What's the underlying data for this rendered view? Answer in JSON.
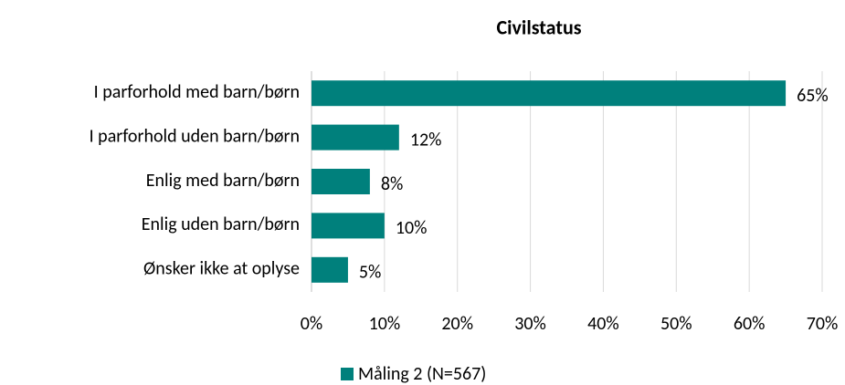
{
  "chart_data": {
    "type": "barh",
    "title": "Civilstatus",
    "categories": [
      "I parforhold med barn/børn",
      "I parforhold uden barn/børn",
      "Enlig med barn/børn",
      "Enlig uden barn/børn",
      "Ønsker ikke at oplyse"
    ],
    "series": [
      {
        "name": "Måling 2 (N=567)",
        "color": "#00807c",
        "values": [
          65,
          12,
          8,
          10,
          5
        ],
        "value_labels": [
          "65%",
          "12%",
          "8%",
          "10%",
          "5%"
        ]
      }
    ],
    "xlim": [
      0,
      70
    ],
    "xticks": [
      {
        "value": 0,
        "label": "0%"
      },
      {
        "value": 10,
        "label": "10%"
      },
      {
        "value": 20,
        "label": "20%"
      },
      {
        "value": 30,
        "label": "30%"
      },
      {
        "value": 40,
        "label": "40%"
      },
      {
        "value": 50,
        "label": "50%"
      },
      {
        "value": 60,
        "label": "60%"
      },
      {
        "value": 70,
        "label": "70%"
      }
    ],
    "grid": true,
    "legend": "bottom"
  }
}
